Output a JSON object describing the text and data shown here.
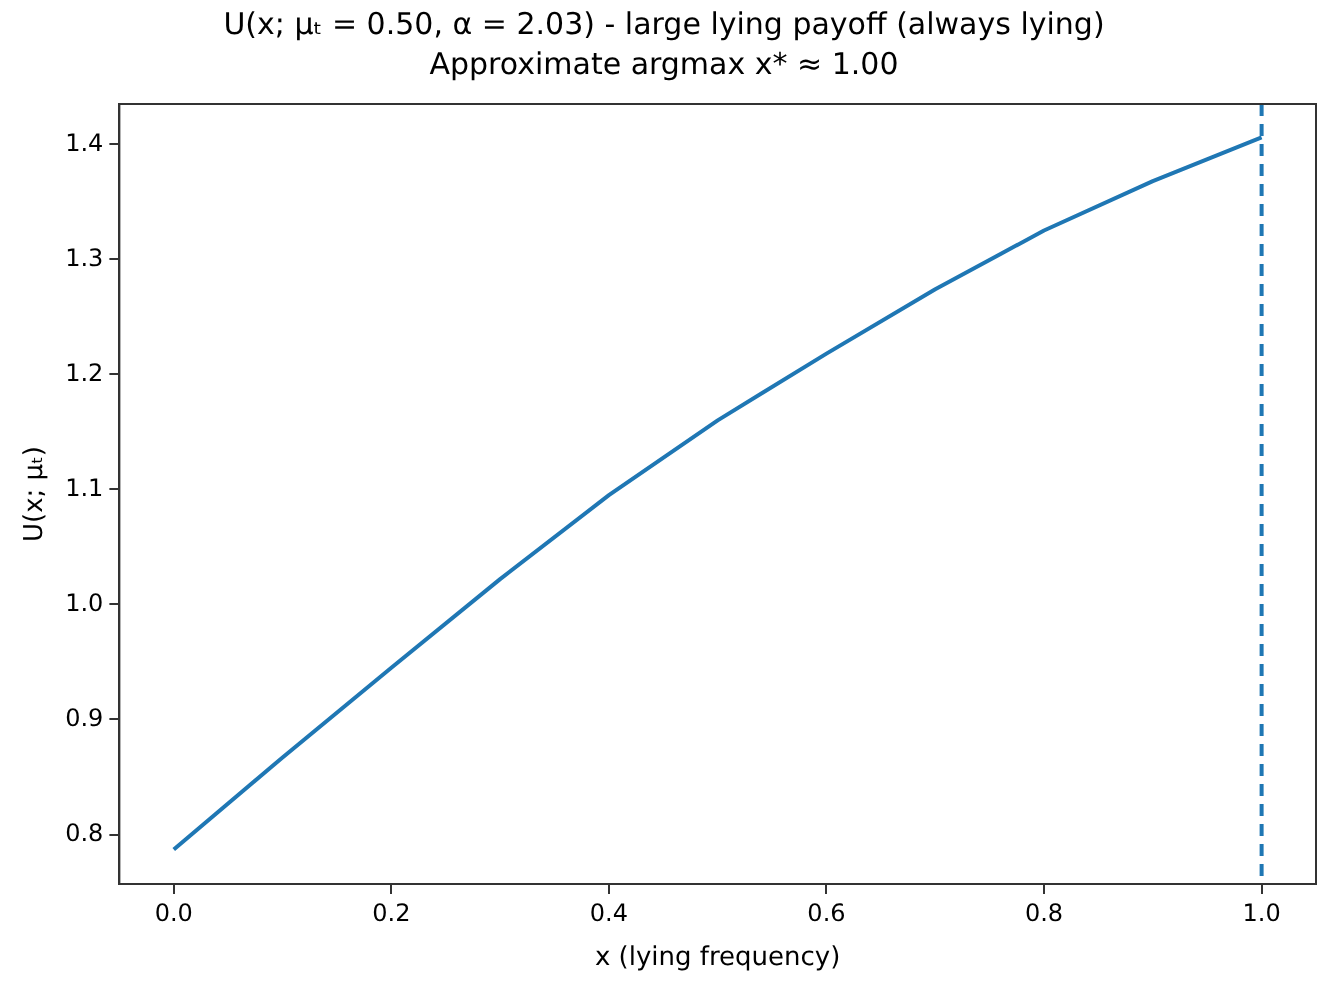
{
  "chart_data": {
    "type": "line",
    "title": "U(x; μₜ = 0.50, α = 2.03) - large lying payoff (always lying)",
    "subtitle": "Approximate argmax x* ≈ 1.00",
    "xlabel": "x (lying frequency)",
    "ylabel": "U(x; μₜ)",
    "x": [
      0,
      0.1,
      0.2,
      0.3,
      0.4,
      0.5,
      0.6,
      0.7,
      0.8,
      0.9,
      1.0
    ],
    "series": [
      {
        "color": "#1f77b4",
        "values": [
          0.787,
          0.867,
          0.945,
          1.022,
          1.095,
          1.16,
          1.218,
          1.274,
          1.325,
          1.368,
          1.406
        ]
      }
    ],
    "xlim": [
      -0.05,
      1.05
    ],
    "xticks": [
      {
        "value": 0,
        "label": "0.0"
      },
      0.2,
      0.4,
      0.6,
      0.8,
      {
        "value": 1,
        "label": "1.0"
      }
    ],
    "ylim": [
      0.757,
      1.435
    ],
    "yticks": [
      0.8,
      0.9,
      {
        "value": 1,
        "label": "1.0"
      },
      1.1,
      1.2,
      1.3,
      1.4
    ],
    "ref_lines": [
      {
        "axis": "x",
        "value": 1.0,
        "color": "#1f77b4",
        "line_style": "dashed"
      }
    ],
    "grid": false,
    "legend": false,
    "marker": "none",
    "line_style": "solid"
  }
}
